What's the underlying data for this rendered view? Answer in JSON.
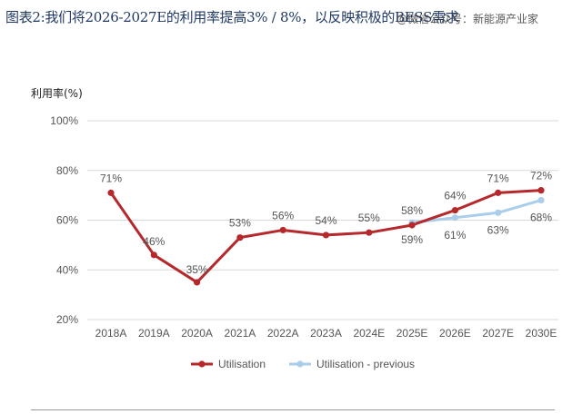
{
  "header": {
    "title": "图表2:我们将2026-2027E的利用率提高3% / 8%，以反映积极的BESS需求",
    "watermark": "@微信公众号：新能源产业家"
  },
  "chart_data": {
    "type": "line",
    "title": "",
    "ylabel": "利用率(%)",
    "xlabel": "",
    "ylim": [
      20,
      100
    ],
    "yticks": [
      20,
      40,
      60,
      80,
      100
    ],
    "ytick_labels": [
      "20%",
      "40%",
      "60%",
      "80%",
      "100%"
    ],
    "categories": [
      "2018A",
      "2019A",
      "2020A",
      "2021A",
      "2022A",
      "2023A",
      "2024E",
      "2025E",
      "2026E",
      "2027E",
      "2030E"
    ],
    "series": [
      {
        "name": "Utilisation",
        "color": "#b5292d",
        "values": [
          71,
          46,
          35,
          53,
          56,
          54,
          55,
          58,
          64,
          71,
          72
        ],
        "labels": [
          "71%",
          "46%",
          "35%",
          "53%",
          "56%",
          "54%",
          "55%",
          "58%",
          "64%",
          "71%",
          "72%"
        ]
      },
      {
        "name": "Utilisation - previous",
        "color": "#a9cdea",
        "values": [
          null,
          null,
          null,
          null,
          null,
          null,
          null,
          59,
          61,
          63,
          68
        ],
        "labels": [
          null,
          null,
          null,
          null,
          null,
          null,
          null,
          "59%",
          "61%",
          "63%",
          "68%"
        ]
      }
    ],
    "legend_position": "bottom"
  }
}
